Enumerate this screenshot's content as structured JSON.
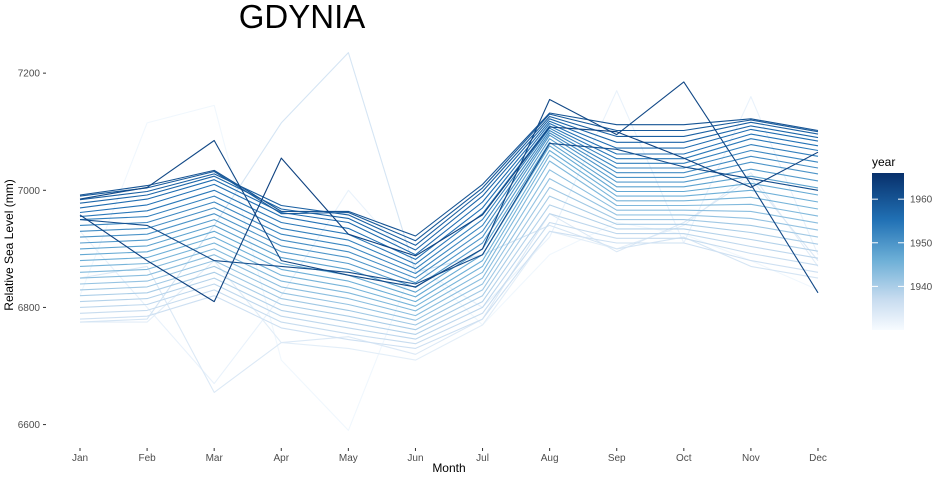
{
  "chart_data": {
    "type": "line",
    "title": "GDYNIA",
    "xlabel": "Month",
    "ylabel": "Relative Sea Level (mm)",
    "categories": [
      "Jan",
      "Feb",
      "Mar",
      "Apr",
      "May",
      "Jun",
      "Jul",
      "Aug",
      "Sep",
      "Oct",
      "Nov",
      "Dec"
    ],
    "ylim": [
      6560,
      7260
    ],
    "yticks": [
      6600,
      6800,
      7000,
      7200
    ],
    "grid": false,
    "legend": {
      "title": "year",
      "placement": "right",
      "range": [
        1930,
        1966
      ],
      "ticks": [
        1940,
        1950,
        1960
      ],
      "color_low": "#f7fbff",
      "color_high": "#08306b"
    },
    "colors": {
      "low": "#f7fbff",
      "high": "#08306b"
    },
    "series": [
      {
        "year": 1931,
        "values": [
          6820,
          7115,
          7145,
          6710,
          6590,
          6880,
          6770,
          6890,
          6945,
          6925,
          6880,
          6830
        ]
      },
      {
        "year": 1932,
        "values": [
          6930,
          6800,
          6670,
          6820,
          7000,
          6870,
          6800,
          6920,
          7170,
          6910,
          7160,
          6890
        ]
      },
      {
        "year": 1933,
        "values": [
          6775,
          6775,
          6880,
          6740,
          6730,
          6710,
          6770,
          6930,
          6900,
          6940,
          7030,
          6870
        ]
      },
      {
        "year": 1934,
        "values": [
          6850,
          6870,
          6655,
          6740,
          6750,
          6720,
          6780,
          6960,
          6895,
          6945,
          7020,
          6880
        ]
      },
      {
        "year": 1935,
        "values": [
          6775,
          6780,
          6940,
          7115,
          7235,
          6860,
          6890,
          6940,
          6900,
          6920,
          6870,
          6850
        ]
      },
      {
        "year": 1936,
        "values": [
          6780,
          6785,
          6820,
          6765,
          6745,
          6730,
          6780,
          6930,
          6910,
          6910,
          6880,
          6860
        ]
      },
      {
        "year": 1937,
        "values": [
          6790,
          6795,
          6830,
          6775,
          6755,
          6738,
          6790,
          6945,
          6918,
          6918,
          6892,
          6872
        ]
      },
      {
        "year": 1938,
        "values": [
          6800,
          6805,
          6840,
          6785,
          6765,
          6746,
          6800,
          6960,
          6926,
          6926,
          6904,
          6884
        ]
      },
      {
        "year": 1939,
        "values": [
          6810,
          6815,
          6850,
          6795,
          6775,
          6754,
          6810,
          6975,
          6934,
          6934,
          6916,
          6896
        ]
      },
      {
        "year": 1940,
        "values": [
          6820,
          6825,
          6860,
          6805,
          6785,
          6762,
          6820,
          6990,
          6942,
          6942,
          6928,
          6908
        ]
      },
      {
        "year": 1941,
        "values": [
          6830,
          6835,
          6870,
          6815,
          6795,
          6770,
          6830,
          7005,
          6950,
          6950,
          6940,
          6920
        ]
      },
      {
        "year": 1942,
        "values": [
          6840,
          6845,
          6880,
          6825,
          6805,
          6778,
          6840,
          7020,
          6958,
          6958,
          6952,
          6932
        ]
      },
      {
        "year": 1943,
        "values": [
          6850,
          6855,
          6890,
          6835,
          6815,
          6786,
          6850,
          7035,
          6966,
          6966,
          6964,
          6944
        ]
      },
      {
        "year": 1944,
        "values": [
          6860,
          6865,
          6900,
          6845,
          6825,
          6794,
          6860,
          7050,
          6974,
          6974,
          6976,
          6956
        ]
      },
      {
        "year": 1945,
        "values": [
          6870,
          6875,
          6910,
          6855,
          6835,
          6802,
          6870,
          7060,
          6982,
          6982,
          6988,
          6968
        ]
      },
      {
        "year": 1946,
        "values": [
          6880,
          6885,
          6920,
          6865,
          6845,
          6810,
          6880,
          7068,
          6990,
          6990,
          7000,
          6980
        ]
      },
      {
        "year": 1947,
        "values": [
          6890,
          6895,
          6930,
          6875,
          6855,
          6818,
          6890,
          7076,
          6998,
          6998,
          7012,
          6992
        ]
      },
      {
        "year": 1948,
        "values": [
          6900,
          6905,
          6940,
          6885,
          6865,
          6826,
          6900,
          7082,
          7006,
          7006,
          7024,
          7004
        ]
      },
      {
        "year": 1949,
        "values": [
          6910,
          6915,
          6950,
          6895,
          6875,
          6834,
          6910,
          7088,
          7014,
          7014,
          7036,
          7016
        ]
      },
      {
        "year": 1950,
        "values": [
          6920,
          6925,
          6960,
          6905,
          6885,
          6842,
          6920,
          7094,
          7022,
          7022,
          7048,
          7028
        ]
      },
      {
        "year": 1951,
        "values": [
          6930,
          6935,
          6970,
          6915,
          6895,
          6850,
          6930,
          7098,
          7030,
          7030,
          7058,
          7038
        ]
      },
      {
        "year": 1952,
        "values": [
          6940,
          6945,
          6980,
          6925,
          6905,
          6858,
          6940,
          7102,
          7038,
          7038,
          7068,
          7048
        ]
      },
      {
        "year": 1953,
        "values": [
          6950,
          6955,
          6990,
          6935,
          6915,
          6866,
          6950,
          7106,
          7046,
          7046,
          7078,
          7058
        ]
      },
      {
        "year": 1954,
        "values": [
          6955,
          6965,
          7000,
          6945,
          6925,
          6874,
          6960,
          7110,
          7054,
          7054,
          7088,
          7068
        ]
      },
      {
        "year": 1955,
        "values": [
          6962,
          6975,
          7010,
          6955,
          6935,
          6882,
          6970,
          7114,
          7062,
          7062,
          7096,
          7076
        ]
      },
      {
        "year": 1956,
        "values": [
          6970,
          6985,
          7018,
          6962,
          6945,
          6890,
          6980,
          7118,
          7072,
          7072,
          7104,
          7084
        ]
      },
      {
        "year": 1957,
        "values": [
          6978,
          6992,
          7024,
          6968,
          6952,
          6898,
          6990,
          7122,
          7082,
          7082,
          7110,
          7090
        ]
      },
      {
        "year": 1958,
        "values": [
          6984,
          6998,
          7028,
          6974,
          6958,
          6906,
          6998,
          7126,
          7092,
          7092,
          7116,
          7096
        ]
      },
      {
        "year": 1959,
        "values": [
          6990,
          7004,
          7032,
          6960,
          6962,
          6914,
          7004,
          7130,
          7102,
          7102,
          7120,
          7100
        ]
      },
      {
        "year": 1960,
        "values": [
          6992,
          7008,
          7034,
          6964,
          6964,
          6922,
          7010,
          7132,
          7112,
          7112,
          7122,
          7102
        ]
      },
      {
        "year": 1961,
        "values": [
          6950,
          6940,
          6880,
          6870,
          6860,
          6840,
          6890,
          7080,
          7070,
          7040,
          7020,
          7000
        ]
      },
      {
        "year": 1962,
        "values": [
          6985,
          7005,
          7085,
          6880,
          6855,
          6835,
          6900,
          7155,
          7095,
          7185,
          7010,
          6825
        ]
      },
      {
        "year": 1963,
        "values": [
          6958,
          6880,
          6810,
          7055,
          6925,
          6888,
          6958,
          7108,
          7100,
          7055,
          7005,
          7065
        ]
      }
    ]
  }
}
